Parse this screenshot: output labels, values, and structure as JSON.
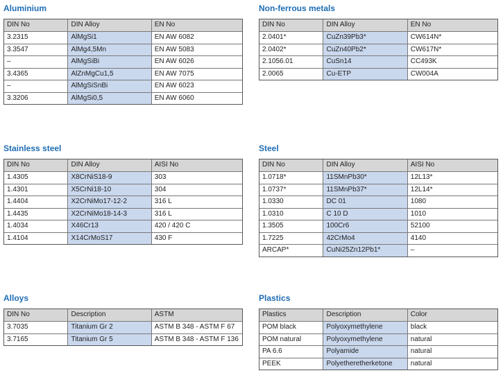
{
  "sections": [
    {
      "title": "Aluminium",
      "columns": [
        "DIN No",
        "DIN Alloy",
        "EN No"
      ],
      "rows": [
        [
          "3.2315",
          "AlMgSi1",
          "EN AW 6082"
        ],
        [
          "3.3547",
          "AlMg4,5Mn",
          "EN AW 5083"
        ],
        [
          "–",
          "AlMgSiBi",
          "EN AW 6026"
        ],
        [
          "3.4365",
          "AlZnMgCu1,5",
          "EN AW 7075"
        ],
        [
          "–",
          "AlMgSiSnBi",
          "EN AW 6023"
        ],
        [
          "3.3206",
          "AlMgSi0,5",
          "EN AW 6060"
        ]
      ]
    },
    {
      "title": "Non-ferrous metals",
      "columns": [
        "DIN No",
        "DIN Alloy",
        "EN No"
      ],
      "rows": [
        [
          "2.0401*",
          "CuZn39Pb3*",
          "CW614N*"
        ],
        [
          "2.0402*",
          "CuZn40Pb2*",
          "CW617N*"
        ],
        [
          "2.1056.01",
          "CuSn14",
          "CC493K"
        ],
        [
          "2.0065",
          "Cu-ETP",
          "CW004A"
        ]
      ]
    },
    {
      "title": "Stainless steel",
      "columns": [
        "DIN No",
        "DIN Alloy",
        "AISI No"
      ],
      "rows": [
        [
          "1.4305",
          "X8CrNiS18-9",
          "303"
        ],
        [
          "1.4301",
          "X5CrNi18-10",
          "304"
        ],
        [
          "1.4404",
          "X2CrNiMo17-12-2",
          "316 L"
        ],
        [
          "1.4435",
          "X2CrNiMo18-14-3",
          "316 L"
        ],
        [
          "1.4034",
          "X46Cr13",
          "420 / 420 C"
        ],
        [
          "1.4104",
          "X14CrMoS17",
          "430 F"
        ]
      ]
    },
    {
      "title": "Steel",
      "columns": [
        "DIN No",
        "DIN Alloy",
        "AISI No"
      ],
      "rows": [
        [
          "1.0718*",
          "11SMnPb30*",
          "12L13*"
        ],
        [
          "1.0737*",
          "11SMnPb37*",
          "12L14*"
        ],
        [
          "1.0330",
          "DC 01",
          "1080"
        ],
        [
          "1.0310",
          "C 10 D",
          "1010"
        ],
        [
          "1.3505",
          "100Cr6",
          "52100"
        ],
        [
          "1.7225",
          "42CrMo4",
          "4140"
        ],
        [
          "ARCAP*",
          "CuNi25Zn12Pb1*",
          "–"
        ]
      ]
    },
    {
      "title": "Alloys",
      "columns": [
        "DIN No",
        "Description",
        "ASTM"
      ],
      "rows": [
        [
          "3.7035",
          "Titanium Gr 2",
          "ASTM B 348 - ASTM F 67"
        ],
        [
          "3.7165",
          "Titanium Gr 5",
          "ASTM B 348 - ASTM F 136"
        ]
      ]
    },
    {
      "title": "Plastics",
      "columns": [
        "Plastics",
        "Description",
        "Color"
      ],
      "rows": [
        [
          "POM black",
          "Polyoxymethylene",
          "black"
        ],
        [
          "POM natural",
          "Polyoxymethylene",
          "natural"
        ],
        [
          "PA 6.6",
          "Polyamide",
          "natural"
        ],
        [
          "PEEK",
          "Polyetheretherketone",
          "natural"
        ]
      ]
    }
  ]
}
